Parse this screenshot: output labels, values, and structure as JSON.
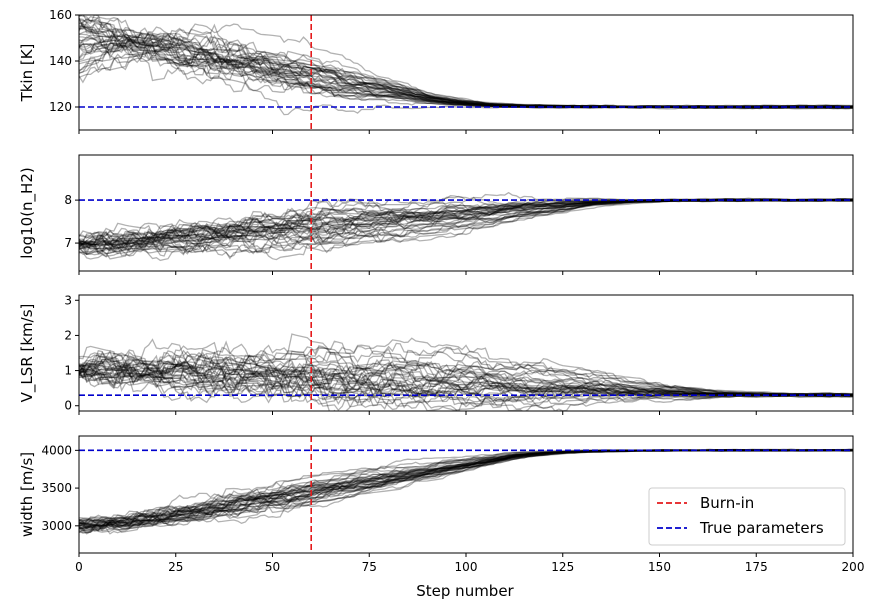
{
  "chart_data": {
    "type": "line",
    "xlabel": "Step number",
    "xlim": [
      0,
      200
    ],
    "xticks": [
      "0",
      "25",
      "50",
      "75",
      "100",
      "125",
      "150",
      "175",
      "200"
    ],
    "xtick_values": [
      0,
      25,
      50,
      75,
      100,
      125,
      150,
      175,
      200
    ],
    "n_walkers": 40,
    "walker_color": "#000000",
    "walker_alpha": 0.3,
    "burn_in": {
      "step": 60,
      "color": "#e41a1c",
      "label": "Burn-in"
    },
    "true_line": {
      "color": "#0000cc",
      "label": "True parameters"
    },
    "legend_position": "lower-right",
    "panels": [
      {
        "ylabel": "Tkin [K]",
        "ylim": [
          110,
          160
        ],
        "yticks": [
          120,
          140,
          160
        ],
        "ytick_labels": [
          "120",
          "140",
          "160"
        ],
        "true_value": 120,
        "start": 150,
        "start_spread": 10,
        "mid_spread": 8,
        "settle_step": 90
      },
      {
        "ylabel": "log10(n_H2)",
        "ylim": [
          6.35,
          9.05
        ],
        "yticks": [
          7,
          8
        ],
        "ytick_labels": [
          "7",
          "8"
        ],
        "true_value": 8.0,
        "start": 7.0,
        "start_spread": 0.08,
        "mid_spread": 0.35,
        "settle_step": 130
      },
      {
        "ylabel": "V_LSR [km/s]",
        "ylim": [
          -0.15,
          3.15
        ],
        "yticks": [
          0,
          1,
          2,
          3
        ],
        "ytick_labels": [
          "0",
          "1",
          "2",
          "3"
        ],
        "true_value": 0.3,
        "start": 1.0,
        "start_spread": 0.1,
        "mid_spread": 0.6,
        "settle_step": 160
      },
      {
        "ylabel": "width [m/s]",
        "ylim": [
          2640,
          4190
        ],
        "yticks": [
          3000,
          3500,
          4000
        ],
        "ytick_labels": [
          "3000",
          "3500",
          "4000"
        ],
        "true_value": 4000,
        "start": 3000,
        "start_spread": 40,
        "mid_spread": 130,
        "settle_step": 110
      }
    ]
  }
}
